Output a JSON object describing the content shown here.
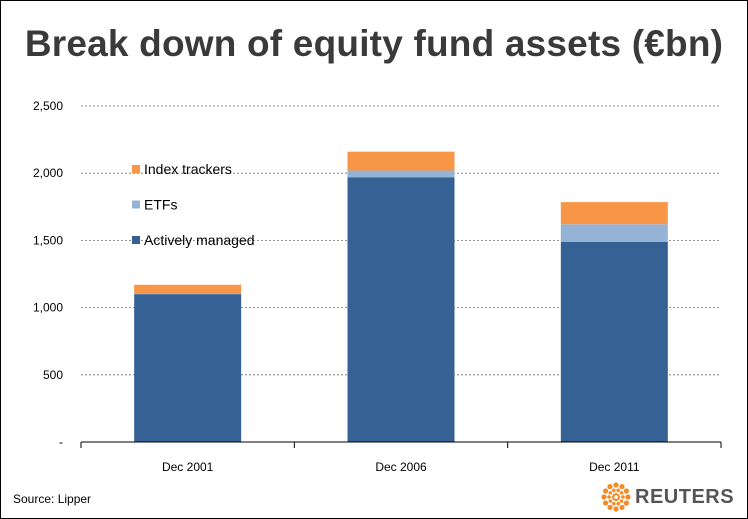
{
  "chart_data": {
    "type": "bar",
    "stacked": true,
    "title": "Break down of equity fund assets (€bn)",
    "categories": [
      "Dec 2001",
      "Dec 2006",
      "Dec 2011"
    ],
    "series": [
      {
        "name": "Actively managed",
        "values": [
          1100,
          1970,
          1490
        ],
        "color": "#356194"
      },
      {
        "name": "ETFs",
        "values": [
          5,
          50,
          130
        ],
        "color": "#95b3d7"
      },
      {
        "name": "Index trackers",
        "values": [
          65,
          140,
          165
        ],
        "color": "#f79646"
      }
    ],
    "ylim": [
      0,
      2500
    ],
    "yticks": [
      0,
      500,
      1000,
      1500,
      2000,
      2500
    ],
    "ytick_labels": [
      "-",
      "500",
      "1,000",
      "1,500",
      "2,000",
      "2,500"
    ],
    "grid": true,
    "legend_order": [
      "Index trackers",
      "ETFs",
      "Actively managed"
    ],
    "legend_position": "top-left"
  },
  "source": "Source: Lipper",
  "logo_text": "REUTERS"
}
